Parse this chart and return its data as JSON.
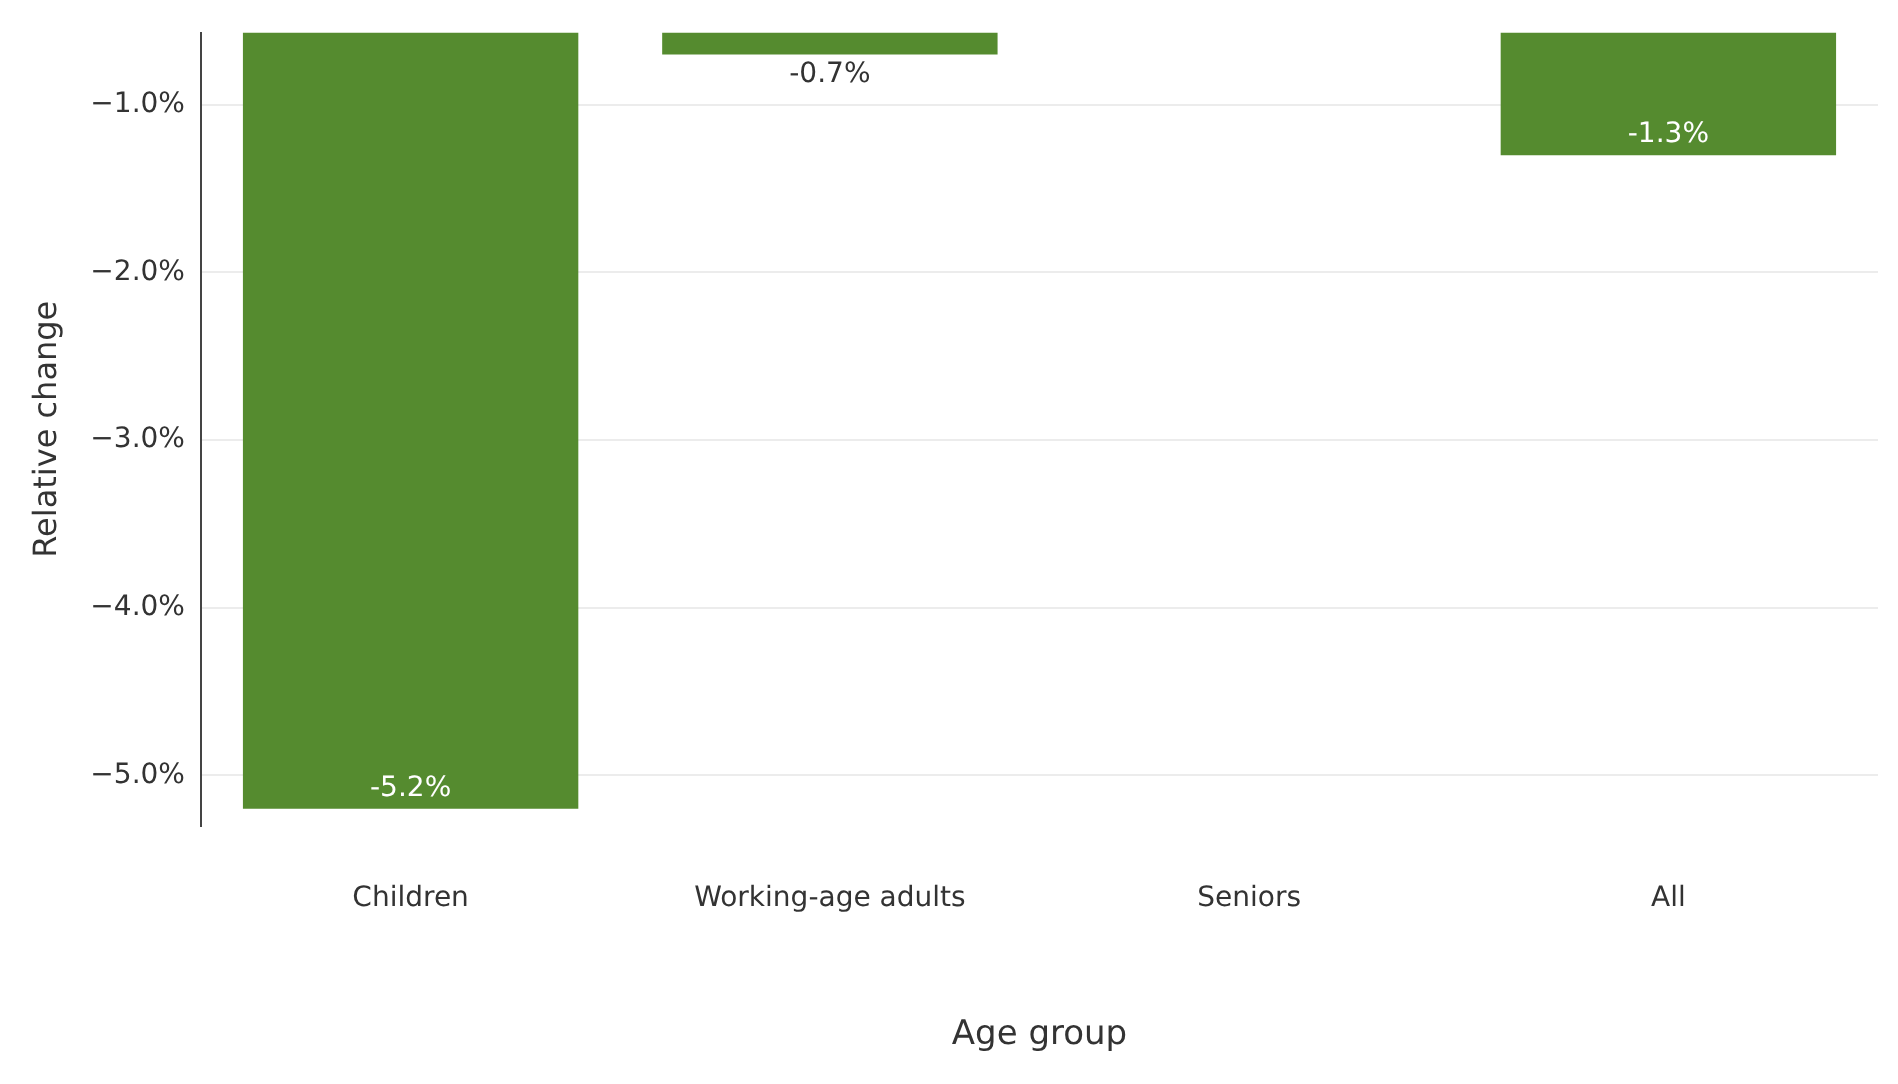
{
  "chart_data": {
    "type": "bar",
    "xlabel": "Age group",
    "ylabel": "Relative change",
    "categories": [
      "Children",
      "Working-age adults",
      "Seniors",
      "All"
    ],
    "values": [
      -5.2,
      -0.7,
      null,
      -1.3
    ],
    "value_labels": [
      "-5.2%",
      "-0.7%",
      null,
      "-1.3%"
    ],
    "color": "#558b2f",
    "ylim": [
      -5.3,
      -0.57
    ],
    "yticks": [
      {
        "value": -5,
        "label": "−5.0%"
      },
      {
        "value": -4,
        "label": "−4.0%"
      },
      {
        "value": -3,
        "label": "−3.0%"
      },
      {
        "value": -2,
        "label": "−2.0%"
      },
      {
        "value": -1,
        "label": "−1.0%"
      }
    ],
    "grid": "y",
    "legend": false
  }
}
